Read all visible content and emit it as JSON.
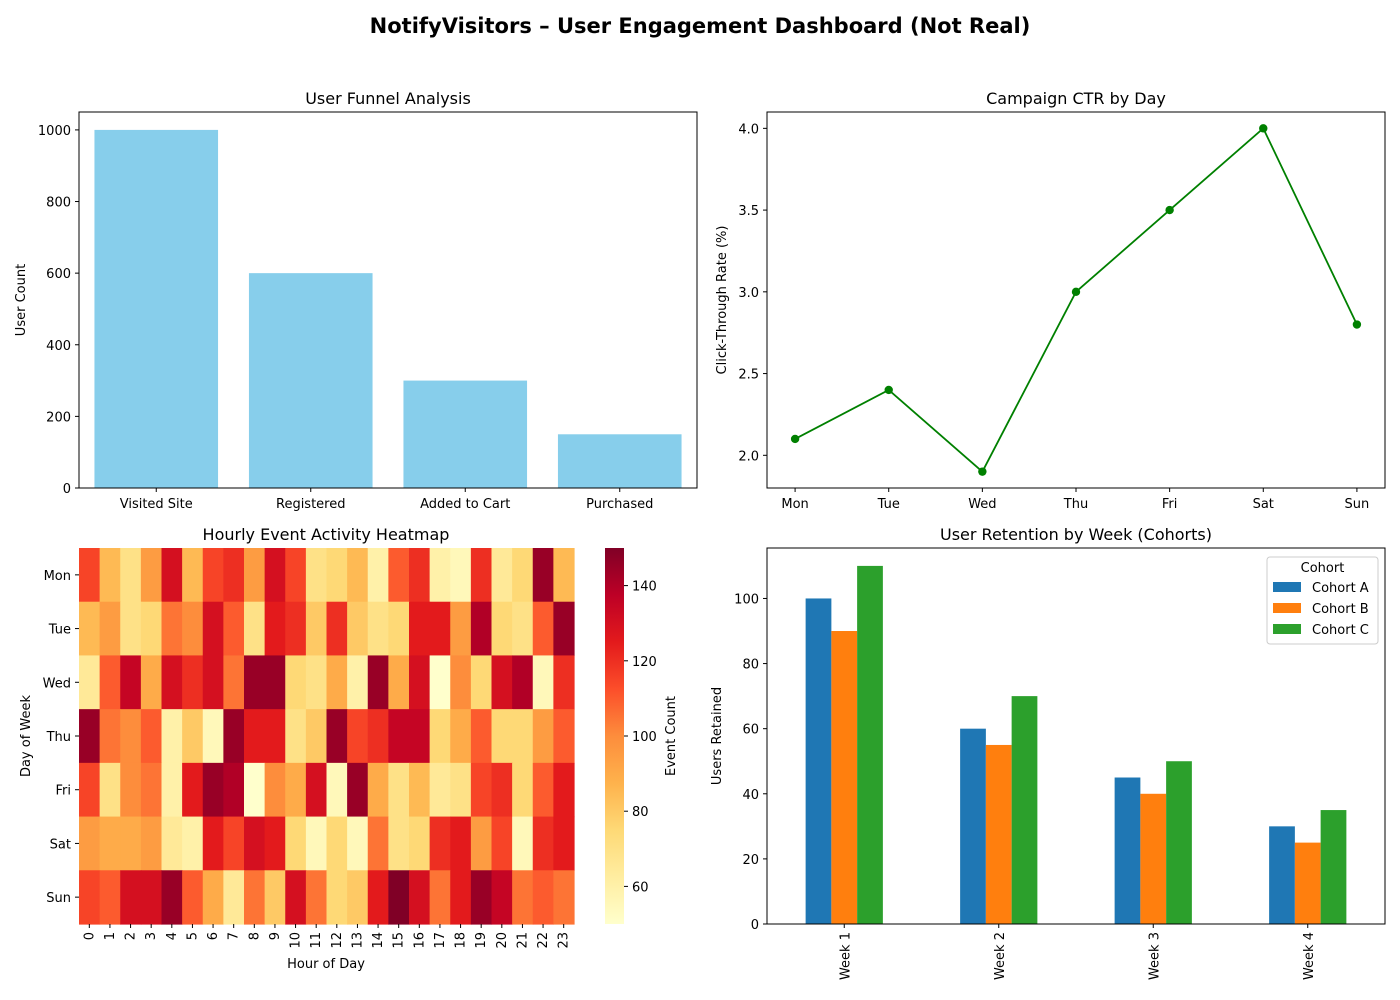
{
  "title": "NotifyVisitors – User Engagement Dashboard (Not Real)",
  "chart_data": [
    {
      "type": "bar",
      "title": "User Funnel Analysis",
      "xlabel": "",
      "ylabel": "User Count",
      "categories": [
        "Visited Site",
        "Registered",
        "Added to Cart",
        "Purchased"
      ],
      "values": [
        1000,
        600,
        300,
        150
      ],
      "ylim": [
        0,
        1050
      ],
      "yticks": [
        0,
        200,
        400,
        600,
        800,
        1000
      ],
      "color": "#87ceeb"
    },
    {
      "type": "line",
      "title": "Campaign CTR by Day",
      "xlabel": "",
      "ylabel": "Click-Through Rate (%)",
      "x": [
        "Mon",
        "Tue",
        "Wed",
        "Thu",
        "Fri",
        "Sat",
        "Sun"
      ],
      "y": [
        2.1,
        2.4,
        1.9,
        3.0,
        3.5,
        4.0,
        2.8
      ],
      "ylim": [
        1.8,
        4.1
      ],
      "yticks": [
        "2.0",
        "2.5",
        "3.0",
        "3.5",
        "4.0"
      ],
      "color": "#008000"
    },
    {
      "type": "heatmap",
      "title": "Hourly Event Activity Heatmap",
      "xlabel": "Hour of Day",
      "ylabel": "Day of Week",
      "x": [
        "0",
        "1",
        "2",
        "3",
        "4",
        "5",
        "6",
        "7",
        "8",
        "9",
        "10",
        "11",
        "12",
        "13",
        "14",
        "15",
        "16",
        "17",
        "18",
        "19",
        "20",
        "21",
        "22",
        "23"
      ],
      "y": [
        "Mon",
        "Tue",
        "Wed",
        "Thu",
        "Fri",
        "Sat",
        "Sun"
      ],
      "values": [
        [
          115,
          85,
          70,
          95,
          130,
          85,
          115,
          120,
          95,
          130,
          115,
          70,
          75,
          85,
          60,
          110,
          120,
          60,
          55,
          120,
          65,
          75,
          145,
          85
        ],
        [
          85,
          95,
          70,
          75,
          105,
          100,
          130,
          110,
          70,
          125,
          120,
          80,
          120,
          80,
          70,
          75,
          125,
          125,
          95,
          140,
          75,
          70,
          110,
          145
        ],
        [
          65,
          110,
          135,
          90,
          130,
          120,
          130,
          105,
          145,
          145,
          75,
          70,
          90,
          60,
          145,
          90,
          130,
          50,
          100,
          75,
          130,
          140,
          55,
          120
        ],
        [
          145,
          105,
          100,
          110,
          60,
          80,
          55,
          145,
          125,
          125,
          70,
          80,
          145,
          115,
          120,
          135,
          135,
          75,
          90,
          110,
          75,
          75,
          95,
          110
        ],
        [
          115,
          70,
          100,
          105,
          60,
          125,
          145,
          140,
          50,
          100,
          90,
          130,
          55,
          145,
          90,
          70,
          85,
          65,
          70,
          115,
          120,
          75,
          110,
          125
        ],
        [
          95,
          90,
          90,
          95,
          65,
          60,
          125,
          115,
          130,
          125,
          75,
          55,
          75,
          55,
          105,
          70,
          75,
          120,
          125,
          95,
          115,
          55,
          120,
          125
        ],
        [
          115,
          110,
          130,
          130,
          145,
          110,
          90,
          65,
          105,
          80,
          130,
          105,
          75,
          80,
          125,
          150,
          130,
          105,
          125,
          145,
          135,
          105,
          110,
          105
        ]
      ],
      "colorbar": {
        "label": "Event Count",
        "min": 50,
        "max": 150,
        "ticks": [
          60,
          80,
          100,
          120,
          140
        ]
      },
      "colormap": "YlOrRd"
    },
    {
      "type": "bar",
      "title": "User Retention by Week (Cohorts)",
      "xlabel": "",
      "ylabel": "Users Retained",
      "categories": [
        "Week 1",
        "Week 2",
        "Week 3",
        "Week 4"
      ],
      "series": [
        {
          "name": "Cohort A",
          "values": [
            100,
            60,
            45,
            30
          ],
          "color": "#1f77b4"
        },
        {
          "name": "Cohort B",
          "values": [
            90,
            55,
            40,
            25
          ],
          "color": "#ff7f0e"
        },
        {
          "name": "Cohort C",
          "values": [
            110,
            70,
            50,
            35
          ],
          "color": "#2ca02c"
        }
      ],
      "ylim": [
        0,
        115.5
      ],
      "yticks": [
        0,
        20,
        40,
        60,
        80,
        100
      ],
      "legend": {
        "title": "Cohort",
        "position": "top-right"
      }
    }
  ]
}
